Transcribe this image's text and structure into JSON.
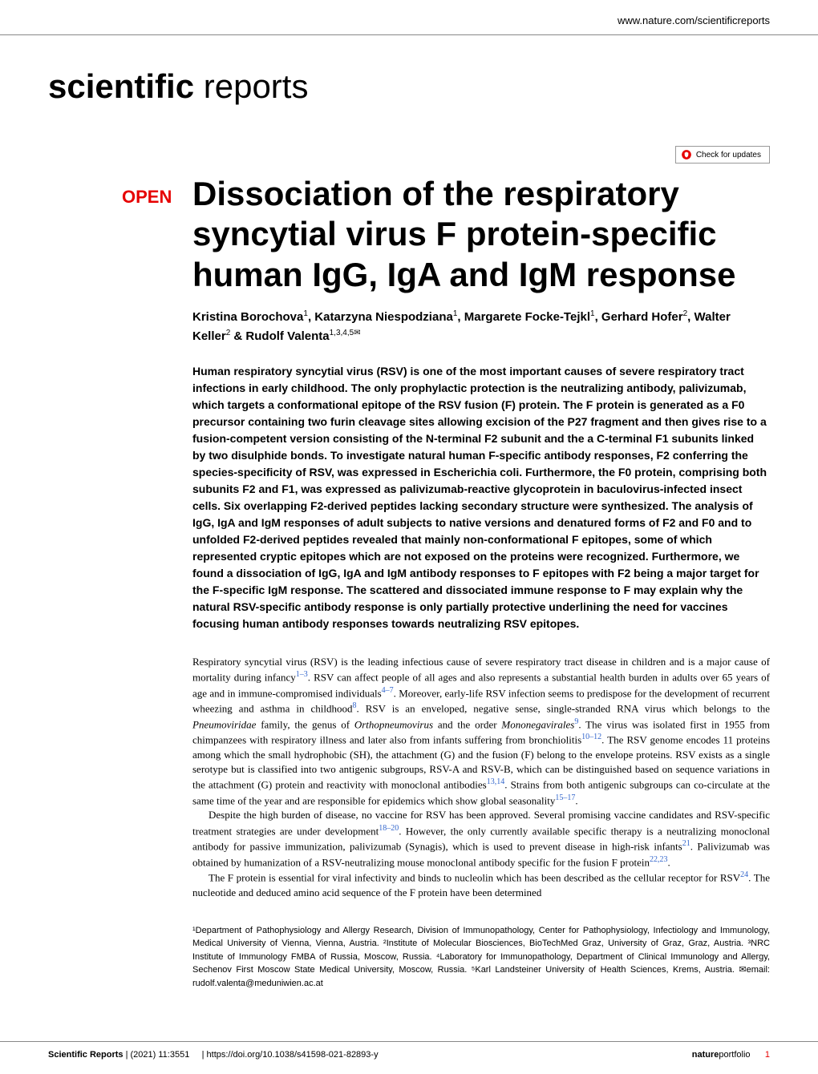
{
  "header": {
    "url": "www.nature.com/scientificreports",
    "journal_bold": "scientific",
    "journal_light": " reports",
    "check_updates": "Check for updates"
  },
  "article": {
    "open_label": "OPEN",
    "title": "Dissociation of the respiratory syncytial virus F protein-specific human IgG, IgA and IgM response",
    "authors_html": "Kristina Borochova<sup>1</sup>, Katarzyna Niespodziana<sup>1</sup>, Margarete Focke-Tejkl<sup>1</sup>, Gerhard Hofer<sup>2</sup>, Walter Keller<sup>2</sup> & Rudolf Valenta<sup>1,3,4,5✉</sup>",
    "abstract": "Human respiratory syncytial virus (RSV) is one of the most important causes of severe respiratory tract infections in early childhood. The only prophylactic protection is the neutralizing antibody, palivizumab, which targets a conformational epitope of the RSV fusion (F) protein. The F protein is generated as a F0 precursor containing two furin cleavage sites allowing excision of the P27 fragment and then gives rise to a fusion-competent version consisting of the N-terminal F2 subunit and the a C-terminal F1 subunits linked by two disulphide bonds. To investigate natural human F-specific antibody responses, F2 conferring the species-specificity of RSV, was expressed in Escherichia coli. Furthermore, the F0 protein, comprising both subunits F2 and F1, was expressed as palivizumab-reactive glycoprotein in baculovirus-infected insect cells. Six overlapping F2-derived peptides lacking secondary structure were synthesized. The analysis of IgG, IgA and IgM responses of adult subjects to native versions and denatured forms of F2 and F0 and to unfolded F2-derived peptides revealed that mainly non-conformational F epitopes, some of which represented cryptic epitopes which are not exposed on the proteins were recognized. Furthermore, we found a dissociation of IgG, IgA and IgM antibody responses to F epitopes with F2 being a major target for the F-specific IgM response. The scattered and dissociated immune response to F may explain why the natural RSV-specific antibody response is only partially protective underlining the need for vaccines focusing human antibody responses towards neutralizing RSV epitopes.",
    "body": {
      "p1_pre": "Respiratory syncytial virus (RSV) is the leading infectious cause of severe respiratory tract disease in children and is a major cause of mortality during infancy",
      "p1_ref1": "1–3",
      "p1_mid1": ". RSV can affect people of all ages and also represents a substantial health burden in adults over 65 years of age and in immune-compromised individuals",
      "p1_ref2": "4–7",
      "p1_mid2": ". Moreover, early-life RSV infection seems to predispose for the development of recurrent wheezing and asthma in childhood",
      "p1_ref3": "8",
      "p1_mid3": ". RSV is an enveloped, negative sense, single-stranded RNA virus which belongs to the ",
      "p1_ital1": "Pneumoviridae",
      "p1_mid4": " family, the genus of ",
      "p1_ital2": "Orthopneumovirus",
      "p1_mid5": " and the order ",
      "p1_ital3": "Mononegavirales",
      "p1_ref4": "9",
      "p1_mid6": ". The virus was isolated first in 1955 from chimpanzees with respiratory illness and later also from infants suffering from bronchiolitis",
      "p1_ref5": "10–12",
      "p1_mid7": ". The RSV genome encodes 11 proteins among which the small hydrophobic (SH), the attachment (G) and the fusion (F) belong to the envelope proteins. RSV exists as a single serotype but is classified into two antigenic subgroups, RSV-A and RSV-B, which can be distinguished based on sequence variations in the attachment (G) protein and reactivity with monoclonal antibodies",
      "p1_ref6": "13,14",
      "p1_mid8": ". Strains from both antigenic subgroups can co-circulate at the same time of the year and are responsible for epidemics which show global seasonality",
      "p1_ref7": "15–17",
      "p1_end": ".",
      "p2_pre": "Despite the high burden of disease, no vaccine for RSV has been approved. Several promising vaccine candidates and RSV-specific treatment strategies are under development",
      "p2_ref1": "18–20",
      "p2_mid1": ". However, the only currently available specific therapy is a neutralizing monoclonal antibody for passive immunization, palivizumab (Synagis), which is used to prevent disease in high-risk infants",
      "p2_ref2": "21",
      "p2_mid2": ". Palivizumab was obtained by humanization of a RSV-neutralizing mouse monoclonal antibody specific for the fusion F protein",
      "p2_ref3": "22,23",
      "p2_end": ".",
      "p3_pre": "The F protein is essential for viral infectivity and binds to nucleolin which has been described as the cellular receptor for RSV",
      "p3_ref1": "24",
      "p3_end": ". The nucleotide and deduced amino acid sequence of the F protein have been determined"
    },
    "affiliations": "¹Department of Pathophysiology and Allergy Research, Division of Immunopathology, Center for Pathophysiology, Infectiology and Immunology, Medical University of Vienna, Vienna, Austria. ²Institute of Molecular Biosciences, BioTechMed Graz, University of Graz, Graz, Austria. ³NRC Institute of Immunology FMBA of Russia, Moscow, Russia. ⁴Laboratory for Immunopathology, Department of Clinical Immunology and Allergy, Sechenov First Moscow State Medical University, Moscow, Russia. ⁵Karl Landsteiner University of Health Sciences, Krems, Austria. ✉email: rudolf.valenta@meduniwien.ac.at"
  },
  "footer": {
    "journal_name": "Scientific Reports",
    "citation": "(2021) 11:3551",
    "doi": "https://doi.org/10.1038/s41598-021-82893-y",
    "portfolio_bold": "nature",
    "portfolio_light": "portfolio",
    "page_number": "1"
  },
  "colors": {
    "accent_red": "#e60000",
    "link_blue": "#3366cc",
    "divider": "#888888",
    "text": "#000000",
    "background": "#ffffff"
  }
}
